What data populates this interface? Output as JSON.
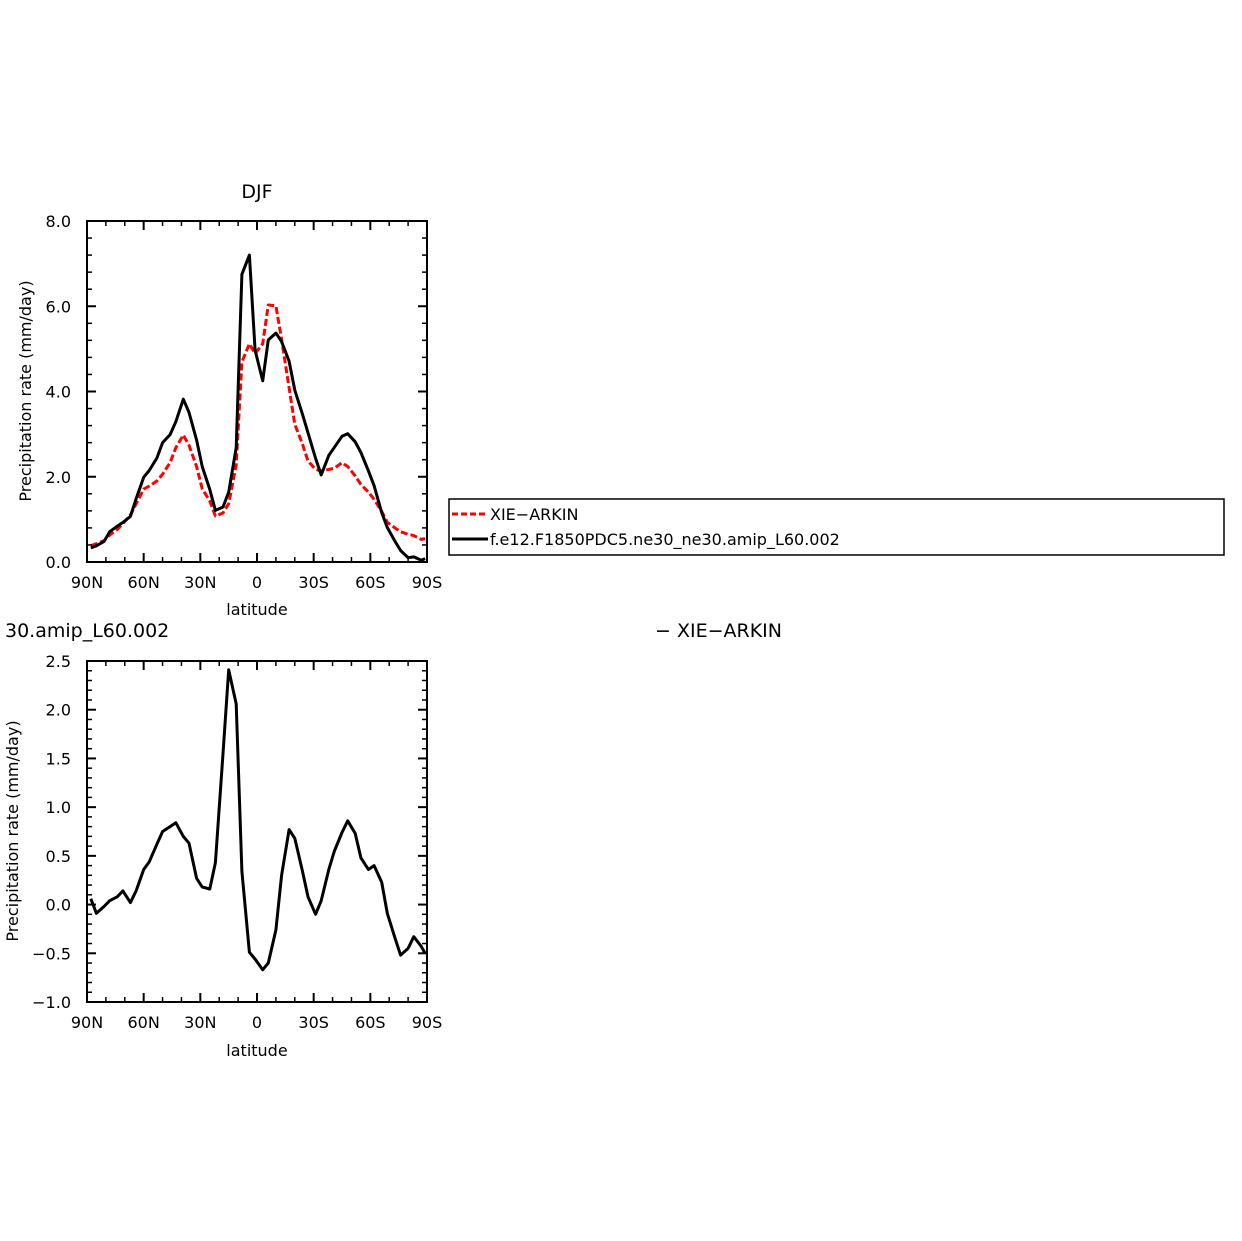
{
  "chart_data": [
    {
      "type": "line",
      "title": "DJF",
      "xlabel": "latitude",
      "ylabel": "Precipitation rate (mm/day)",
      "xlim": [
        -90,
        90
      ],
      "ylim": [
        0,
        8
      ],
      "xticks": [
        {
          "v": -90,
          "label": "90N"
        },
        {
          "v": -60,
          "label": "60N"
        },
        {
          "v": -30,
          "label": "30N"
        },
        {
          "v": 0,
          "label": "0"
        },
        {
          "v": 30,
          "label": "30S"
        },
        {
          "v": 60,
          "label": "60S"
        },
        {
          "v": 90,
          "label": "90S"
        }
      ],
      "yticks": [
        {
          "v": 0,
          "label": "0.0"
        },
        {
          "v": 2,
          "label": "2.0"
        },
        {
          "v": 4,
          "label": "4.0"
        },
        {
          "v": 6,
          "label": "6.0"
        },
        {
          "v": 8,
          "label": "8.0"
        }
      ],
      "legend": "right",
      "series": [
        {
          "name": "XIE−ARKIN",
          "color": "#ff0000",
          "dash": true,
          "x": [
            -88,
            -85,
            -81,
            -78,
            -74,
            -71,
            -67,
            -64,
            -60,
            -57,
            -53,
            -50,
            -46,
            -43,
            -39,
            -36,
            -32,
            -29,
            -25,
            -22,
            -18,
            -15,
            -11,
            -8,
            -4,
            -1,
            3,
            6,
            10,
            13,
            17,
            20,
            24,
            27,
            31,
            34,
            38,
            41,
            45,
            48,
            52,
            55,
            59,
            62,
            66,
            69,
            73,
            76,
            80,
            83,
            87,
            89
          ],
          "y": [
            0.38,
            0.43,
            0.5,
            0.63,
            0.76,
            0.9,
            1.1,
            1.36,
            1.71,
            1.78,
            1.9,
            2.06,
            2.33,
            2.68,
            2.98,
            2.74,
            2.24,
            1.72,
            1.43,
            1.08,
            1.15,
            1.37,
            2.28,
            4.69,
            5.12,
            4.89,
            5.12,
            6.03,
            6.01,
            5.22,
            4.09,
            3.23,
            2.78,
            2.37,
            2.17,
            2.14,
            2.17,
            2.2,
            2.33,
            2.24,
            2.02,
            1.82,
            1.64,
            1.47,
            1.19,
            0.93,
            0.8,
            0.71,
            0.65,
            0.62,
            0.53,
            0.55
          ]
        },
        {
          "name": "f.e12.F1850PDC5.ne30_ne30.amip_L60.002",
          "color": "#000000",
          "dash": false,
          "x": [
            -88,
            -85,
            -81,
            -78,
            -74,
            -71,
            -67,
            -64,
            -60,
            -57,
            -53,
            -50,
            -46,
            -43,
            -39,
            -36,
            -32,
            -29,
            -25,
            -22,
            -18,
            -15,
            -11,
            -8,
            -4,
            -1,
            3,
            6,
            10,
            13,
            17,
            20,
            24,
            27,
            31,
            34,
            38,
            41,
            45,
            48,
            52,
            55,
            59,
            62,
            66,
            69,
            73,
            76,
            80,
            83,
            87,
            89
          ],
          "y": [
            0.33,
            0.38,
            0.48,
            0.71,
            0.84,
            0.93,
            1.07,
            1.48,
            1.99,
            2.15,
            2.44,
            2.8,
            2.99,
            3.29,
            3.82,
            3.51,
            2.86,
            2.24,
            1.7,
            1.21,
            1.29,
            1.64,
            2.68,
            6.75,
            7.2,
            4.97,
            4.25,
            5.21,
            5.37,
            5.17,
            4.71,
            4.03,
            3.48,
            3.03,
            2.43,
            2.04,
            2.5,
            2.69,
            2.95,
            3.01,
            2.82,
            2.57,
            2.14,
            1.79,
            1.16,
            0.81,
            0.49,
            0.27,
            0.1,
            0.12,
            0.04,
            0.08
          ]
        }
      ]
    },
    {
      "type": "line",
      "title": "30.amip_L60.002",
      "subtitle": "− XIE−ARKIN",
      "xlabel": "latitude",
      "ylabel": "Precipitation rate (mm/day)",
      "xlim": [
        -90,
        90
      ],
      "ylim": [
        -1.0,
        2.5
      ],
      "xticks": [
        {
          "v": -90,
          "label": "90N"
        },
        {
          "v": -60,
          "label": "60N"
        },
        {
          "v": -30,
          "label": "30N"
        },
        {
          "v": 0,
          "label": "0"
        },
        {
          "v": 30,
          "label": "30S"
        },
        {
          "v": 60,
          "label": "60S"
        },
        {
          "v": 90,
          "label": "90S"
        }
      ],
      "yticks": [
        {
          "v": -1.0,
          "label": "−1.0"
        },
        {
          "v": -0.5,
          "label": "−0.5"
        },
        {
          "v": 0.0,
          "label": "0.0"
        },
        {
          "v": 0.5,
          "label": "0.5"
        },
        {
          "v": 1.0,
          "label": "1.0"
        },
        {
          "v": 1.5,
          "label": "1.5"
        },
        {
          "v": 2.0,
          "label": "2.0"
        },
        {
          "v": 2.5,
          "label": "2.5"
        }
      ],
      "series": [
        {
          "color": "#000000",
          "dash": false,
          "x": [
            -88,
            -85,
            -81,
            -78,
            -74,
            -71,
            -67,
            -64,
            -60,
            -57,
            -53,
            -50,
            -46,
            -43,
            -39,
            -36,
            -32,
            -29,
            -25,
            -22,
            -18,
            -15,
            -11,
            -8,
            -4,
            -1,
            3,
            6,
            10,
            13,
            17,
            20,
            24,
            27,
            31,
            34,
            38,
            41,
            45,
            48,
            52,
            55,
            59,
            62,
            66,
            69,
            73,
            76,
            80,
            83,
            87,
            89
          ],
          "y": [
            0.06,
            -0.09,
            -0.02,
            0.04,
            0.08,
            0.14,
            0.02,
            0.14,
            0.36,
            0.44,
            0.62,
            0.75,
            0.8,
            0.84,
            0.7,
            0.63,
            0.27,
            0.18,
            0.16,
            0.43,
            1.55,
            2.41,
            2.06,
            0.34,
            -0.49,
            -0.56,
            -0.67,
            -0.6,
            -0.26,
            0.3,
            0.77,
            0.68,
            0.35,
            0.08,
            -0.1,
            0.04,
            0.36,
            0.55,
            0.74,
            0.86,
            0.73,
            0.48,
            0.36,
            0.4,
            0.23,
            -0.09,
            -0.34,
            -0.52,
            -0.45,
            -0.33,
            -0.43,
            -0.5
          ]
        }
      ]
    }
  ]
}
